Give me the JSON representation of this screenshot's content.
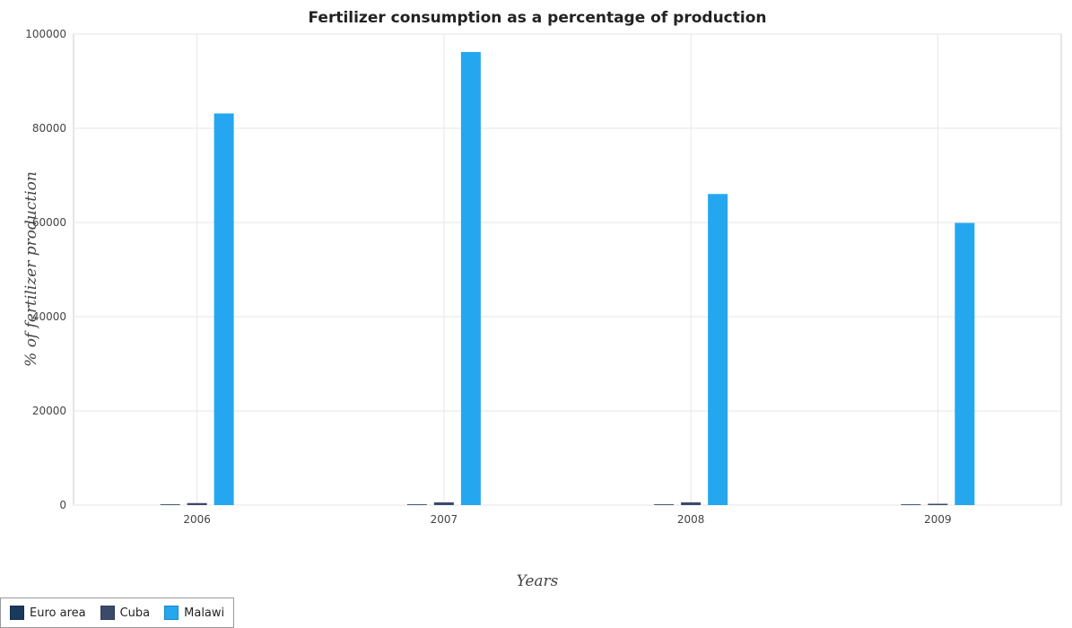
{
  "chart_data": {
    "type": "bar",
    "title": "Fertilizer consumption as a percentage of production",
    "xlabel": "Years",
    "ylabel": "% of fertilizer production",
    "categories": [
      "2006",
      "2007",
      "2008",
      "2009"
    ],
    "ylim": [
      0,
      100000
    ],
    "yticks": [
      "0",
      "20000",
      "40000",
      "60000",
      "80000",
      "100000"
    ],
    "grid": true,
    "legend_position": "bottom-left",
    "series": [
      {
        "name": "Euro area",
        "color": "#1a3a5c",
        "values": [
          120,
          120,
          110,
          100
        ]
      },
      {
        "name": "Cuba",
        "color": "#3b4a6b",
        "values": [
          430,
          580,
          590,
          280
        ]
      },
      {
        "name": "Malawi",
        "color": "#25a7f0",
        "values": [
          83150,
          96200,
          66050,
          59900
        ]
      }
    ]
  }
}
